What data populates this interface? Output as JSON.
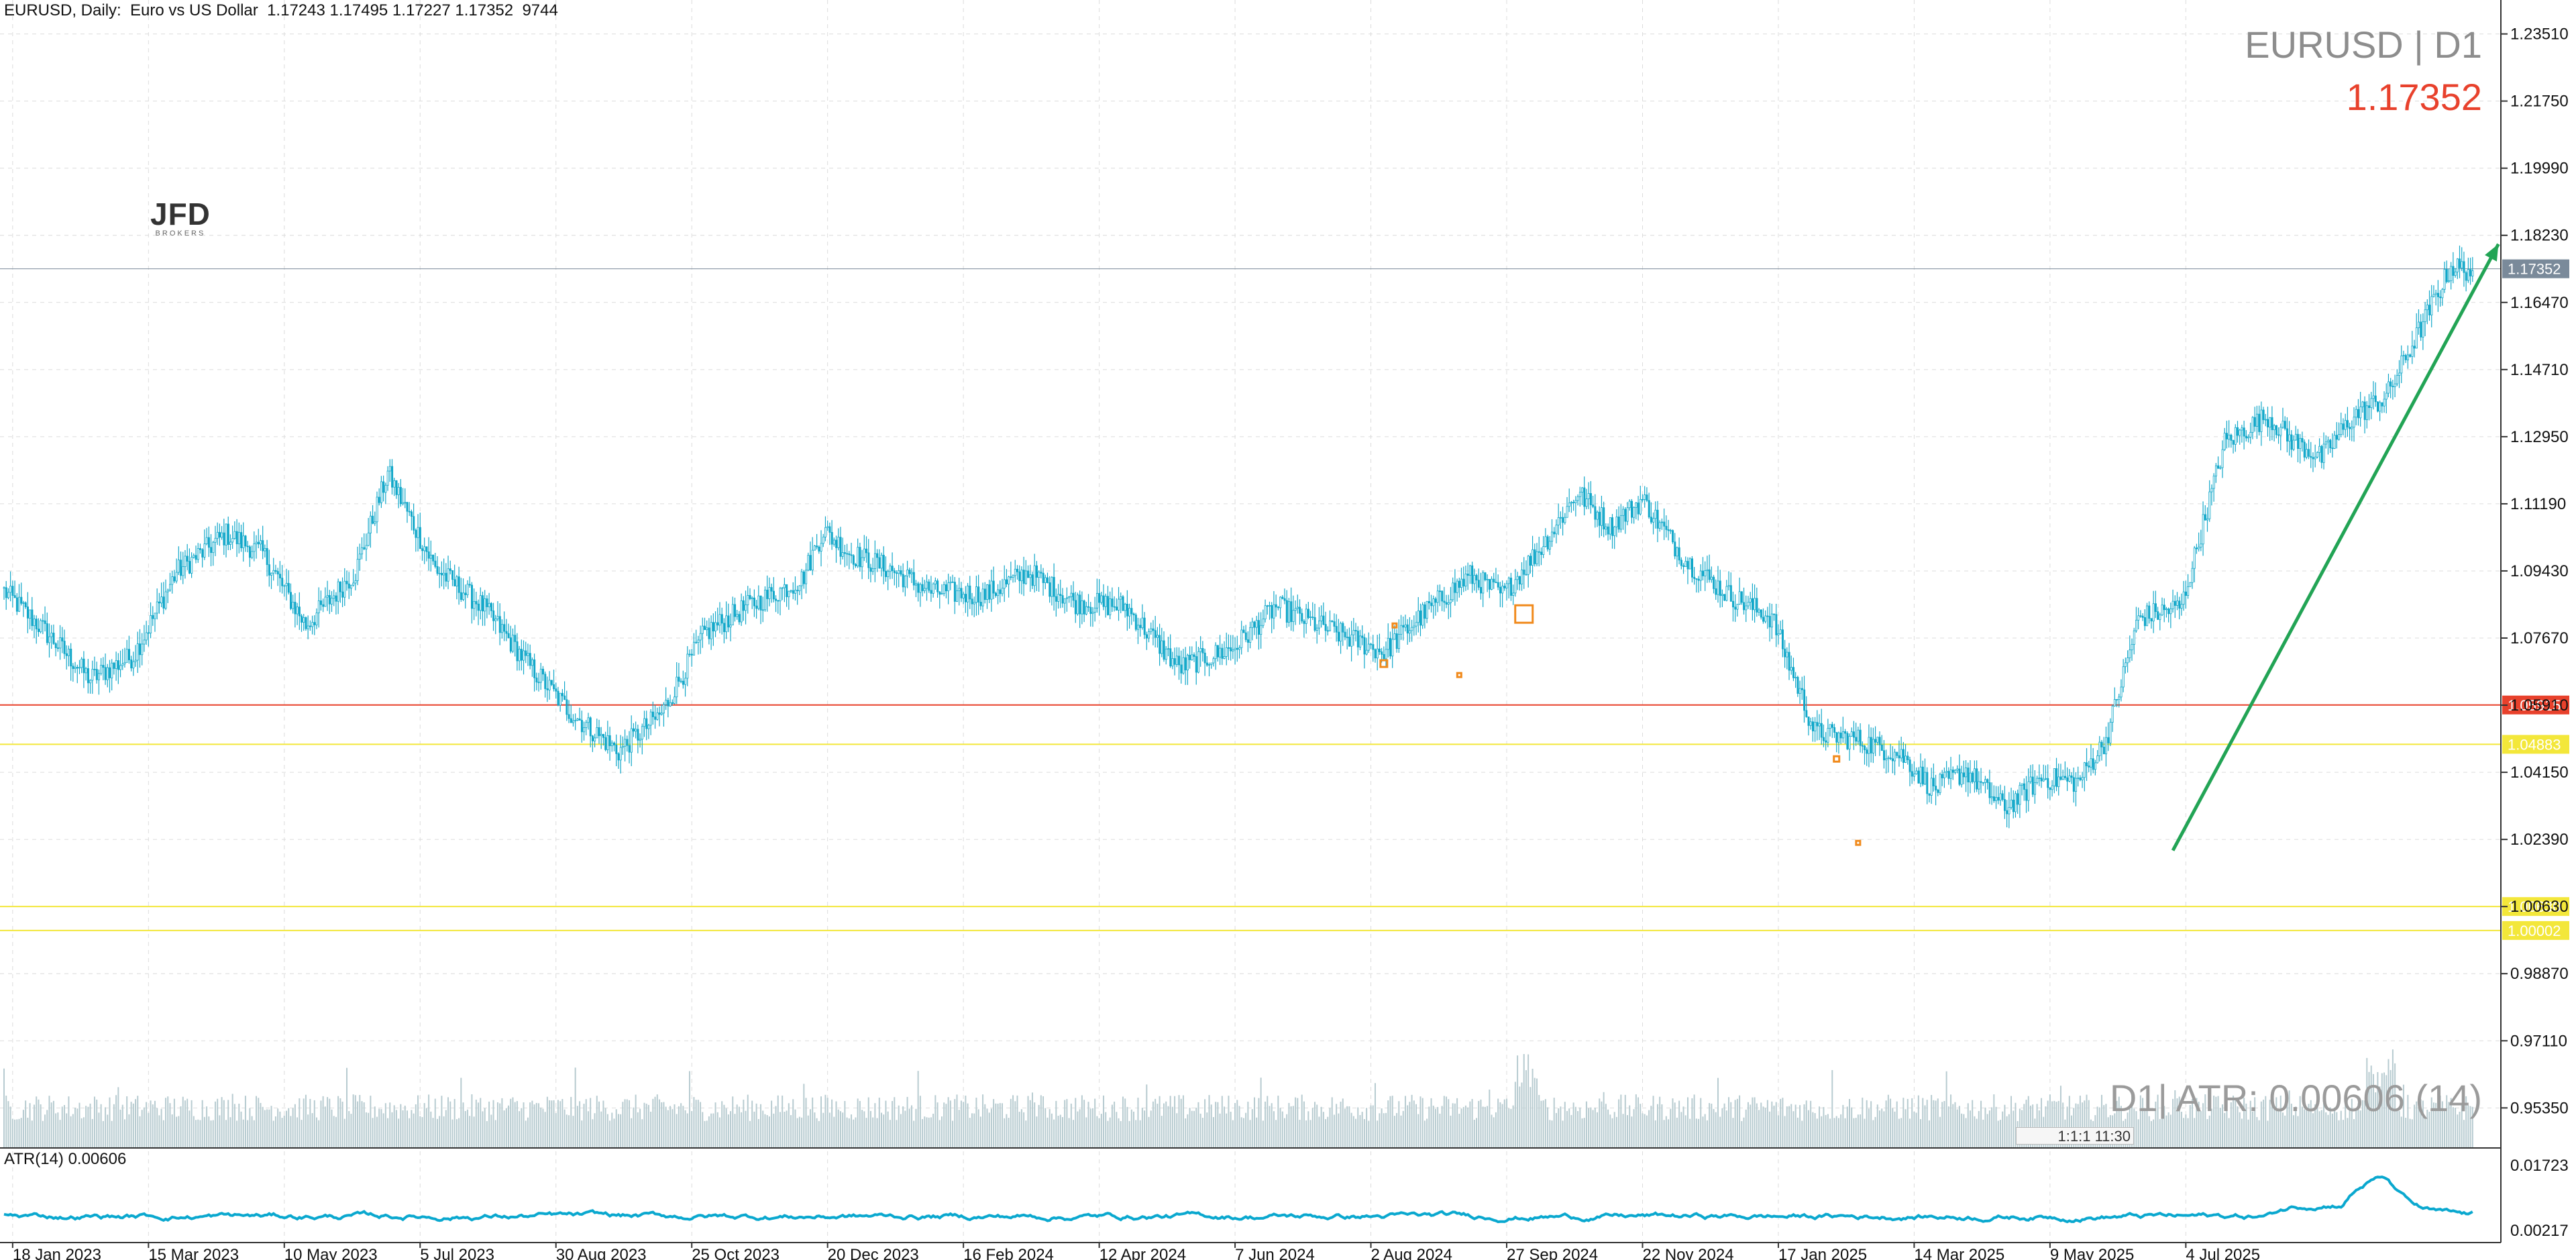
{
  "header": {
    "symbol": "EURUSD",
    "timeframe": "Daily",
    "description": "Euro vs US Dollar",
    "open": "1.17243",
    "high": "1.17495",
    "low": "1.17227",
    "close": "1.17352",
    "volume": "9744",
    "text": "EURUSD, Daily:  Euro vs US Dollar  1.17243 1.17495 1.17227 1.17352  9744"
  },
  "overlay": {
    "symbol_tf": "EURUSD | D1",
    "price": "1.17352",
    "atr_readout": "D1| ATR: 0.00606 (14)",
    "logo_main": "JFD",
    "logo_sub": "BROKERS",
    "mini_box_text": "1:1:1 11:30"
  },
  "indicator": {
    "label": "ATR(14) 0.00606",
    "scale_top": "0.01723",
    "scale_bottom": "0.00217",
    "line_color": "#0aa8cf"
  },
  "colors": {
    "candle": "#11a7c9",
    "volume": "#b7cbd0",
    "grid": "#dcdcdc",
    "current_price_bg": "#7a8a9a",
    "red_level_bg": "#e8412c",
    "yellow_level": "#f3e73a",
    "trend_arrow": "#22a455",
    "marker_orange": "#f08a1c"
  },
  "price_axis": {
    "ticks": [
      "1.23510",
      "1.21750",
      "1.19990",
      "1.18230",
      "1.16470",
      "1.14710",
      "1.12950",
      "1.11190",
      "1.09430",
      "1.07670",
      "1.05910",
      "1.04150",
      "1.02390",
      "1.00630",
      "0.98870",
      "0.97110",
      "0.95350"
    ],
    "current_price_tag": "1.17352",
    "red_level_tag": "1.05915",
    "yellow_level_tag": "1.04883",
    "yellow_level_tag_2": "1.00630",
    "yellow_level_tag_3": "1.00002"
  },
  "time_axis": {
    "labels": [
      "18 Jan 2023",
      "15 Mar 2023",
      "10 May 2023",
      "5 Jul 2023",
      "30 Aug 2023",
      "25 Oct 2023",
      "20 Dec 2023",
      "16 Feb 2024",
      "12 Apr 2024",
      "7 Jun 2024",
      "2 Aug 2024",
      "27 Sep 2024",
      "22 Nov 2024",
      "17 Jan 2025",
      "14 Mar 2025",
      "9 May 2025",
      "4 Jul 2025"
    ]
  },
  "chart_data": {
    "type": "candlestick",
    "symbol": "EURUSD",
    "timeframe": "D1",
    "ylim": [
      0.943,
      1.244
    ],
    "x_labels": [
      "18 Jan 2023",
      "15 Mar 2023",
      "10 May 2023",
      "5 Jul 2023",
      "30 Aug 2023",
      "25 Oct 2023",
      "20 Dec 2023",
      "16 Feb 2024",
      "12 Apr 2024",
      "7 Jun 2024",
      "2 Aug 2024",
      "27 Sep 2024",
      "22 Nov 2024",
      "17 Jan 2025",
      "14 Mar 2025",
      "9 May 2025",
      "4 Jul 2025"
    ],
    "anchors": [
      [
        0,
        1.089
      ],
      [
        18,
        1.079
      ],
      [
        40,
        1.066
      ],
      [
        60,
        1.072
      ],
      [
        80,
        1.094
      ],
      [
        103,
        1.104
      ],
      [
        120,
        1.099
      ],
      [
        140,
        1.08
      ],
      [
        163,
        1.094
      ],
      [
        178,
        1.12
      ],
      [
        200,
        1.095
      ],
      [
        222,
        1.085
      ],
      [
        243,
        1.07
      ],
      [
        263,
        1.057
      ],
      [
        285,
        1.047
      ],
      [
        305,
        1.057
      ],
      [
        325,
        1.078
      ],
      [
        345,
        1.085
      ],
      [
        370,
        1.092
      ],
      [
        380,
        1.105
      ],
      [
        392,
        1.099
      ],
      [
        410,
        1.095
      ],
      [
        430,
        1.089
      ],
      [
        455,
        1.088
      ],
      [
        475,
        1.094
      ],
      [
        497,
        1.086
      ],
      [
        520,
        1.085
      ],
      [
        545,
        1.069
      ],
      [
        570,
        1.074
      ],
      [
        590,
        1.085
      ],
      [
        610,
        1.08
      ],
      [
        640,
        1.073
      ],
      [
        660,
        1.084
      ],
      [
        680,
        1.093
      ],
      [
        695,
        1.088
      ],
      [
        715,
        1.102
      ],
      [
        730,
        1.115
      ],
      [
        745,
        1.106
      ],
      [
        760,
        1.113
      ],
      [
        780,
        1.097
      ],
      [
        800,
        1.088
      ],
      [
        820,
        1.082
      ],
      [
        840,
        1.052
      ],
      [
        860,
        1.05
      ],
      [
        880,
        1.046
      ],
      [
        895,
        1.037
      ],
      [
        910,
        1.042
      ],
      [
        928,
        1.032
      ],
      [
        945,
        1.04
      ],
      [
        962,
        1.039
      ],
      [
        975,
        1.05
      ],
      [
        990,
        1.082
      ],
      [
        1010,
        1.085
      ],
      [
        1030,
        1.128
      ],
      [
        1050,
        1.135
      ],
      [
        1060,
        1.129
      ],
      [
        1075,
        1.124
      ],
      [
        1090,
        1.135
      ],
      [
        1105,
        1.14
      ],
      [
        1120,
        1.157
      ],
      [
        1135,
        1.174
      ],
      [
        1145,
        1.173
      ]
    ],
    "volume_range": [
      0,
      100
    ],
    "atr_series": {
      "name": "ATR(14)",
      "last": 0.00606,
      "ylim": [
        0.00217,
        0.01723
      ]
    },
    "levels": [
      {
        "price": 1.17352,
        "color": "#7a8a9a",
        "label": "1.17352"
      },
      {
        "price": 1.05915,
        "color": "#e8412c",
        "label": "1.05915"
      },
      {
        "price": 1.04883,
        "color": "#f3e73a",
        "label": "1.04883"
      },
      {
        "price": 1.0063,
        "color": "#f3e73a",
        "label": "1.00630"
      },
      {
        "price": 1.00002,
        "color": "#f3e73a",
        "label": "1.00002"
      }
    ],
    "trend_arrow": {
      "from": [
        1006,
        1.021
      ],
      "to": [
        1157,
        1.18
      ]
    },
    "grid": true
  }
}
